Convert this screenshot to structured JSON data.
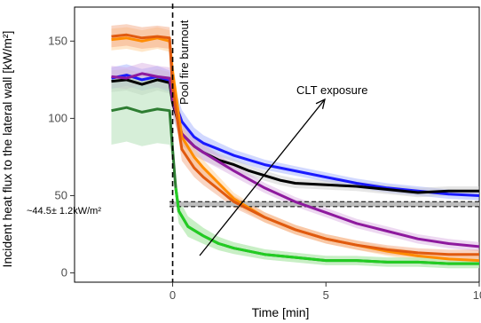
{
  "chart_data": {
    "type": "line",
    "xlabel": "Time [min]",
    "ylabel": "Incident heat flux to the lateral wall [kW/m²]",
    "xlim": [
      -3.2,
      10
    ],
    "ylim": [
      -6,
      172
    ],
    "xticks": [
      0,
      5,
      10
    ],
    "yticks": [
      0,
      50,
      100,
      150
    ],
    "grid": false,
    "annotations": {
      "burnout": "Pool fire burnout",
      "exposure": "CLT exposure",
      "plateau": "~44.5± 1.2kW/m²"
    },
    "burnout_x": 0,
    "plateau_y": 44.5,
    "series": [
      {
        "color": "#1a1aff",
        "band": "#9aa8ff",
        "x": [
          -2,
          -1.5,
          -1,
          -0.5,
          -0.1,
          0,
          0.3,
          0.7,
          1,
          1.5,
          2,
          3,
          4,
          5,
          6,
          7,
          8,
          9,
          10
        ],
        "y": [
          126,
          128,
          125,
          127,
          124,
          115,
          98,
          88,
          84,
          80,
          76,
          70,
          66,
          62,
          58,
          55,
          53,
          51,
          50
        ]
      },
      {
        "color": "#000000",
        "band": "#c8c8c8",
        "x": [
          -2,
          -1.5,
          -1,
          -0.5,
          -0.1,
          0,
          0.3,
          0.7,
          1,
          1.5,
          2,
          2.5,
          3,
          3.5,
          4,
          5,
          6,
          7,
          8,
          9,
          10
        ],
        "y": [
          124,
          125,
          122,
          125,
          123,
          110,
          90,
          82,
          78,
          73,
          70,
          66,
          63,
          60,
          58,
          57,
          56,
          54,
          52,
          53,
          53
        ]
      },
      {
        "color": "#8e1a9e",
        "band": "#d7a8e0",
        "x": [
          -2,
          -1.5,
          -1,
          -0.5,
          -0.1,
          0,
          0.3,
          0.7,
          1,
          1.5,
          2,
          3,
          4,
          5,
          6,
          7,
          8,
          9,
          10
        ],
        "y": [
          127,
          126,
          129,
          127,
          126,
          112,
          90,
          82,
          78,
          72,
          66,
          55,
          46,
          39,
          32,
          27,
          22,
          19,
          17
        ]
      },
      {
        "color": "#ff8c00",
        "band": "#ffc98a",
        "x": [
          -2,
          -1.5,
          -1,
          -0.5,
          -0.1,
          0,
          0.3,
          0.7,
          1,
          1.5,
          2,
          3,
          4,
          5,
          6,
          7,
          8,
          9,
          10
        ],
        "y": [
          151,
          152,
          150,
          152,
          150,
          130,
          88,
          75,
          68,
          58,
          48,
          36,
          28,
          22,
          18,
          14,
          11,
          9,
          8
        ]
      },
      {
        "color": "#e05a10",
        "band": "#f2a27a",
        "x": [
          -2,
          -1.5,
          -1,
          -0.5,
          -0.1,
          0,
          0.3,
          0.7,
          1,
          1.5,
          2,
          3,
          4,
          5,
          6,
          7,
          8,
          9,
          10
        ],
        "y": [
          153,
          154,
          152,
          153,
          152,
          120,
          80,
          68,
          62,
          54,
          46,
          36,
          28,
          22,
          18,
          15,
          13,
          12,
          12
        ]
      },
      {
        "color": "#2e7d32",
        "band": "#b5e0b8",
        "x": [
          -2,
          -1.5,
          -1,
          -0.5,
          -0.1,
          0,
          0.1,
          0.2,
          0.5,
          1,
          1.5,
          2,
          3,
          4,
          5,
          6,
          7,
          8,
          9,
          10
        ],
        "y": [
          105,
          107,
          104,
          106,
          105,
          80,
          55,
          40,
          30,
          24,
          19,
          16,
          12,
          10,
          8,
          8,
          7,
          7,
          6,
          6
        ]
      },
      {
        "color": "#22cc22",
        "band": "#b8f0b0",
        "x": [
          0.1,
          0.2,
          0.5,
          1,
          1.5,
          2,
          3,
          4,
          5,
          6,
          7,
          8,
          9,
          10
        ],
        "y": [
          55,
          40,
          30,
          24,
          19,
          16,
          12,
          10,
          8,
          8,
          7,
          7,
          6,
          6
        ]
      }
    ]
  }
}
